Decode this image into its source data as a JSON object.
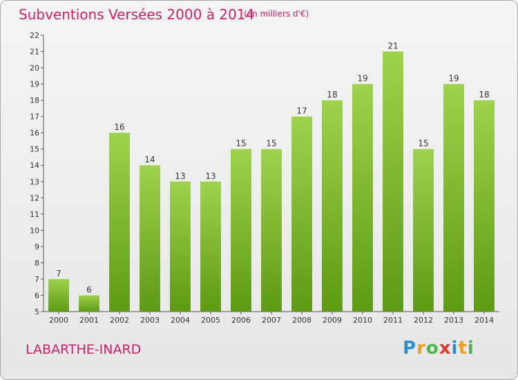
{
  "header": {
    "title": "Subventions Versées 2000 à 2014",
    "subtitle": "(en milliers d'€)"
  },
  "footer": {
    "commune": "LABARTHE-INARD",
    "brand": "Proxiti"
  },
  "colors": {
    "accent": "#cc2266",
    "bar_light": "#9fd24c",
    "bar_dark": "#5e9a14",
    "axis": "#555555"
  },
  "chart_data": {
    "type": "bar",
    "title": "Subventions Versées 2000 à 2014",
    "subtitle": "(en milliers d'€)",
    "categories": [
      "2000",
      "2001",
      "2002",
      "2003",
      "2004",
      "2005",
      "2006",
      "2007",
      "2008",
      "2009",
      "2010",
      "2011",
      "2012",
      "2013",
      "2014"
    ],
    "values": [
      7,
      6,
      16,
      14,
      13,
      13,
      15,
      15,
      17,
      18,
      19,
      21,
      15,
      19,
      18
    ],
    "ylim": [
      5,
      22
    ],
    "yticks": [
      5,
      6,
      7,
      8,
      9,
      10,
      11,
      12,
      13,
      14,
      15,
      16,
      17,
      18,
      19,
      20,
      21,
      22
    ],
    "grid": false,
    "legend": "none"
  }
}
